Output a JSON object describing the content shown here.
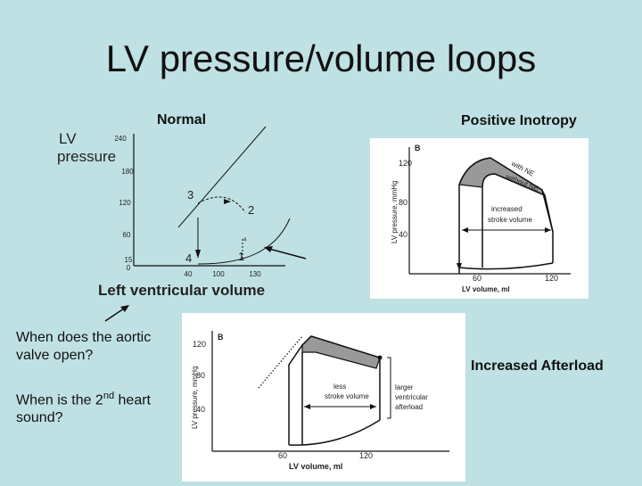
{
  "slide": {
    "title": "LV pressure/volume loops",
    "panel_normal_label": "Normal",
    "panel_inotropy_label": "Positive Inotropy",
    "panel_afterload_label": "Increased Afterload",
    "question_1": "When does the aortic valve open?",
    "question_2_prefix": "When is the 2",
    "question_2_sup": "nd",
    "question_2_suffix": " heart sound?"
  },
  "normal_plot": {
    "ylabel_line1": "LV",
    "ylabel_line2": "pressure",
    "xlabel": "Left ventricular volume",
    "y_ticks": [
      "240",
      "180",
      "120",
      "60",
      "15",
      "0"
    ],
    "x_ticks": [
      "40",
      "100",
      "130"
    ],
    "point_labels": [
      "1",
      "2",
      "3",
      "4"
    ],
    "point_a": "a"
  },
  "inotropy_plot": {
    "panel_letter": "B",
    "ylabel": "LV pressure, mmHg",
    "xlabel": "LV volume, ml",
    "y_ticks": [
      "120",
      "80",
      "40"
    ],
    "x_ticks": [
      "60",
      "120"
    ],
    "with_label": "with NE",
    "without_label": "without NE",
    "annotation_line1": "increased",
    "annotation_line2": "stroke volume"
  },
  "afterload_plot": {
    "panel_letter": "B",
    "ylabel": "LV pressure, mmHg",
    "xlabel": "LV volume, ml",
    "y_ticks": [
      "120",
      "80",
      "40"
    ],
    "x_ticks": [
      "60",
      "120"
    ],
    "less_line1": "less",
    "less_line2": "stroke volume",
    "larger_line1": "larger",
    "larger_line2": "ventricular",
    "larger_line3": "afterload"
  },
  "colors": {
    "background": "#bfe1e3",
    "shading": "#999999",
    "ink": "#111111"
  }
}
